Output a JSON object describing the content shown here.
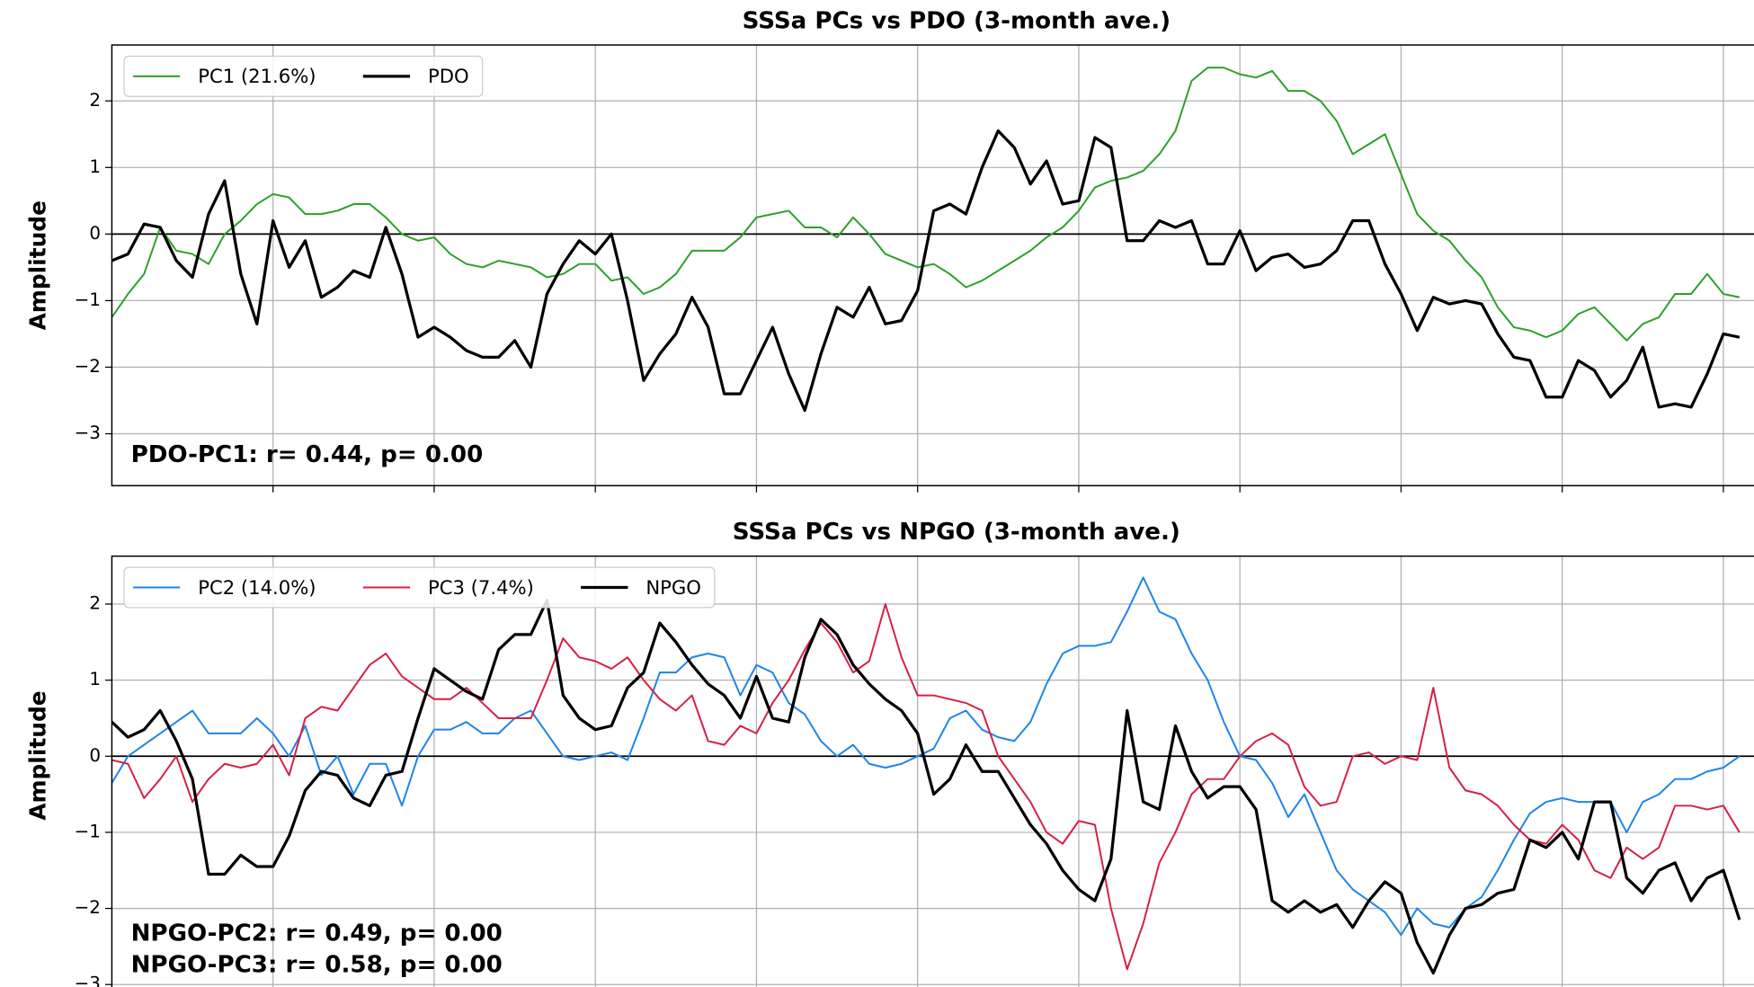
{
  "chart_data": [
    {
      "type": "line",
      "title": "SSSa PCs vs PDO (3-month ave.)",
      "ylabel": "Amplitude",
      "x": [
        0,
        1,
        2,
        3,
        4,
        5,
        6,
        7,
        8,
        9,
        10,
        11,
        12,
        13,
        14,
        15,
        16,
        17,
        18,
        19,
        20,
        21,
        22,
        23,
        24,
        25,
        26,
        27,
        28,
        29,
        30,
        31,
        32,
        33,
        34,
        35,
        36,
        37,
        38,
        39,
        40,
        41,
        42,
        43,
        44,
        45,
        46,
        47,
        48,
        49,
        50,
        51,
        52,
        53,
        54,
        55,
        56,
        57,
        58,
        59,
        60,
        61,
        62,
        63,
        64,
        65,
        66,
        67,
        68,
        69,
        70,
        71,
        72,
        73,
        74,
        75,
        76,
        77,
        78,
        79,
        80,
        81,
        82,
        83,
        84,
        85,
        86,
        87,
        88,
        89,
        90,
        91,
        92,
        93,
        94,
        95,
        96,
        97,
        98,
        99,
        100,
        101
      ],
      "series": [
        {
          "name": "PC1 (21.6%)",
          "color": "#2ca02c",
          "width": 1.6,
          "values": [
            -1.25,
            -0.9,
            -0.6,
            0.1,
            -0.25,
            -0.3,
            -0.45,
            0.0,
            0.2,
            0.45,
            0.6,
            0.55,
            0.3,
            0.3,
            0.35,
            0.45,
            0.45,
            0.25,
            0.0,
            -0.1,
            -0.05,
            -0.3,
            -0.45,
            -0.5,
            -0.4,
            -0.45,
            -0.5,
            -0.65,
            -0.6,
            -0.45,
            -0.45,
            -0.7,
            -0.65,
            -0.9,
            -0.8,
            -0.6,
            -0.25,
            -0.25,
            -0.25,
            -0.05,
            0.25,
            0.3,
            0.35,
            0.1,
            0.1,
            -0.05,
            0.25,
            0.0,
            -0.3,
            -0.4,
            -0.5,
            -0.45,
            -0.6,
            -0.8,
            -0.7,
            -0.55,
            -0.4,
            -0.25,
            -0.05,
            0.1,
            0.35,
            0.7,
            0.8,
            0.85,
            0.95,
            1.2,
            1.55,
            2.3,
            2.5,
            2.5,
            2.4,
            2.35,
            2.45,
            2.15,
            2.15,
            2.0,
            1.7,
            1.2,
            1.35,
            1.5,
            0.9,
            0.3,
            0.05,
            -0.1,
            -0.4,
            -0.65,
            -1.1,
            -1.4,
            -1.45,
            -1.55,
            -1.45,
            -1.2,
            -1.1,
            -1.35,
            -1.6,
            -1.35,
            -1.25,
            -0.9,
            -0.9,
            -0.6,
            -0.9,
            -0.95
          ]
        },
        {
          "name": "PDO",
          "color": "#000000",
          "width": 2.6,
          "values": [
            -0.4,
            -0.3,
            0.15,
            0.1,
            -0.4,
            -0.65,
            0.3,
            0.8,
            -0.6,
            -1.35,
            0.2,
            -0.5,
            -0.1,
            -0.95,
            -0.8,
            -0.55,
            -0.65,
            0.1,
            -0.6,
            -1.55,
            -1.4,
            -1.55,
            -1.75,
            -1.85,
            -1.85,
            -1.6,
            -2.0,
            -0.9,
            -0.45,
            -0.1,
            -0.3,
            0.0,
            -1.0,
            -2.2,
            -1.8,
            -1.5,
            -0.95,
            -1.4,
            -2.4,
            -2.4,
            -1.9,
            -1.4,
            -2.1,
            -2.65,
            -1.8,
            -1.1,
            -1.25,
            -0.8,
            -1.35,
            -1.3,
            -0.85,
            0.35,
            0.45,
            0.3,
            1.0,
            1.55,
            1.3,
            0.75,
            1.1,
            0.45,
            0.5,
            1.45,
            1.3,
            -0.1,
            -0.1,
            0.2,
            0.1,
            0.2,
            -0.45,
            -0.45,
            0.05,
            -0.55,
            -0.35,
            -0.3,
            -0.5,
            -0.45,
            -0.25,
            0.2,
            0.2,
            -0.45,
            -0.9,
            -1.45,
            -0.95,
            -1.05,
            -1.0,
            -1.05,
            -1.5,
            -1.85,
            -1.9,
            -2.45,
            -2.45,
            -1.9,
            -2.05,
            -2.45,
            -2.2,
            -1.7,
            -2.6,
            -2.55,
            -2.6,
            -2.1,
            -1.5,
            -1.55
          ]
        }
      ],
      "xlim": [
        0,
        101.9
      ],
      "ylim": [
        -3.78,
        2.84
      ],
      "xticks": [
        10,
        20,
        30,
        40,
        50,
        60,
        70,
        80,
        90,
        100
      ],
      "yticks": [
        {
          "value": -3,
          "label": "−3"
        },
        {
          "value": -2,
          "label": "−2"
        },
        {
          "value": -1,
          "label": "−1"
        },
        0,
        1,
        2
      ],
      "hline": 0,
      "grid": true,
      "legend": "upper left",
      "annotations": [
        "PDO-PC1: r= 0.44, p= 0.00"
      ]
    },
    {
      "type": "line",
      "title": "SSSa PCs vs NPGO (3-month ave.)",
      "ylabel": "Amplitude",
      "x": [
        0,
        1,
        2,
        3,
        4,
        5,
        6,
        7,
        8,
        9,
        10,
        11,
        12,
        13,
        14,
        15,
        16,
        17,
        18,
        19,
        20,
        21,
        22,
        23,
        24,
        25,
        26,
        27,
        28,
        29,
        30,
        31,
        32,
        33,
        34,
        35,
        36,
        37,
        38,
        39,
        40,
        41,
        42,
        43,
        44,
        45,
        46,
        47,
        48,
        49,
        50,
        51,
        52,
        53,
        54,
        55,
        56,
        57,
        58,
        59,
        60,
        61,
        62,
        63,
        64,
        65,
        66,
        67,
        68,
        69,
        70,
        71,
        72,
        73,
        74,
        75,
        76,
        77,
        78,
        79,
        80,
        81,
        82,
        83,
        84,
        85,
        86,
        87,
        88,
        89,
        90,
        91,
        92,
        93,
        94,
        95,
        96,
        97,
        98,
        99,
        100,
        101
      ],
      "series": [
        {
          "name": "PC2 (14.0%)",
          "color": "#1f85e8",
          "width": 1.6,
          "values": [
            -0.35,
            0.0,
            0.15,
            0.3,
            0.45,
            0.6,
            0.3,
            0.3,
            0.3,
            0.5,
            0.3,
            0.0,
            0.4,
            -0.25,
            0.0,
            -0.5,
            -0.1,
            -0.1,
            -0.65,
            0.0,
            0.35,
            0.35,
            0.45,
            0.3,
            0.3,
            0.5,
            0.6,
            0.3,
            0.0,
            -0.05,
            0.0,
            0.05,
            -0.05,
            0.5,
            1.1,
            1.1,
            1.3,
            1.35,
            1.3,
            0.8,
            1.2,
            1.1,
            0.7,
            0.55,
            0.2,
            0.0,
            0.15,
            -0.1,
            -0.15,
            -0.1,
            0.0,
            0.1,
            0.5,
            0.6,
            0.35,
            0.25,
            0.2,
            0.45,
            0.95,
            1.35,
            1.45,
            1.45,
            1.5,
            1.9,
            2.35,
            1.9,
            1.8,
            1.35,
            1.0,
            0.45,
            0.0,
            -0.05,
            -0.35,
            -0.8,
            -0.5,
            -1.0,
            -1.5,
            -1.75,
            -1.9,
            -2.05,
            -2.35,
            -2.0,
            -2.2,
            -2.25,
            -2.0,
            -1.85,
            -1.5,
            -1.1,
            -0.75,
            -0.6,
            -0.55,
            -0.6,
            -0.6,
            -0.6,
            -1.0,
            -0.6,
            -0.5,
            -0.3,
            -0.3,
            -0.2,
            -0.15,
            0.0
          ]
        },
        {
          "name": "PC3 (7.4%)",
          "color": "#d62045",
          "width": 1.6,
          "values": [
            -0.05,
            -0.1,
            -0.55,
            -0.3,
            0.0,
            -0.6,
            -0.3,
            -0.1,
            -0.15,
            -0.1,
            0.15,
            -0.25,
            0.5,
            0.65,
            0.6,
            0.9,
            1.2,
            1.35,
            1.05,
            0.9,
            0.75,
            0.75,
            0.9,
            0.7,
            0.5,
            0.5,
            0.5,
            1.0,
            1.55,
            1.3,
            1.25,
            1.15,
            1.3,
            1.0,
            0.75,
            0.6,
            0.8,
            0.2,
            0.15,
            0.4,
            0.3,
            0.7,
            1.0,
            1.4,
            1.75,
            1.5,
            1.1,
            1.25,
            2.0,
            1.3,
            0.8,
            0.8,
            0.75,
            0.7,
            0.6,
            0.0,
            -0.3,
            -0.6,
            -1.0,
            -1.15,
            -0.85,
            -0.9,
            -2.0,
            -2.8,
            -2.2,
            -1.4,
            -1.0,
            -0.5,
            -0.3,
            -0.3,
            0.0,
            0.2,
            0.3,
            0.15,
            -0.4,
            -0.65,
            -0.6,
            0.0,
            0.05,
            -0.1,
            0.0,
            -0.05,
            0.9,
            -0.15,
            -0.45,
            -0.5,
            -0.65,
            -0.9,
            -1.1,
            -1.15,
            -0.9,
            -1.1,
            -1.5,
            -1.6,
            -1.2,
            -1.35,
            -1.2,
            -0.65,
            -0.65,
            -0.7,
            -0.65,
            -1.0
          ]
        },
        {
          "name": "NPGO",
          "color": "#000000",
          "width": 2.6,
          "values": [
            0.45,
            0.25,
            0.35,
            0.6,
            0.2,
            -0.3,
            -1.55,
            -1.55,
            -1.3,
            -1.45,
            -1.45,
            -1.05,
            -0.45,
            -0.2,
            -0.25,
            -0.55,
            -0.65,
            -0.25,
            -0.2,
            0.5,
            1.15,
            1.0,
            0.85,
            0.75,
            1.4,
            1.6,
            1.6,
            2.05,
            0.8,
            0.5,
            0.35,
            0.4,
            0.9,
            1.1,
            1.75,
            1.5,
            1.2,
            0.95,
            0.8,
            0.5,
            1.05,
            0.5,
            0.45,
            1.3,
            1.8,
            1.6,
            1.2,
            0.95,
            0.75,
            0.6,
            0.3,
            -0.5,
            -0.3,
            0.15,
            -0.2,
            -0.2,
            -0.55,
            -0.9,
            -1.15,
            -1.5,
            -1.75,
            -1.9,
            -1.35,
            0.6,
            -0.6,
            -0.7,
            0.4,
            -0.2,
            -0.55,
            -0.4,
            -0.4,
            -0.7,
            -1.9,
            -2.05,
            -1.9,
            -2.05,
            -1.95,
            -2.25,
            -1.9,
            -1.65,
            -1.8,
            -2.45,
            -2.85,
            -2.35,
            -2.0,
            -1.95,
            -1.8,
            -1.75,
            -1.1,
            -1.2,
            -1.0,
            -1.35,
            -0.6,
            -0.6,
            -1.6,
            -1.8,
            -1.5,
            -1.4,
            -1.9,
            -1.6,
            -1.5,
            -2.15
          ]
        }
      ],
      "xlim": [
        0,
        101.9
      ],
      "ylim": [
        -3.2,
        2.63
      ],
      "xticks": [
        10,
        20,
        30,
        40,
        50,
        60,
        70,
        80,
        90,
        100
      ],
      "yticks": [
        {
          "value": -3,
          "label": "−3"
        },
        {
          "value": -2,
          "label": "−2"
        },
        {
          "value": -1,
          "label": "−1"
        },
        0,
        1,
        2
      ],
      "hline": 0,
      "grid": true,
      "legend": "upper left",
      "annotations": [
        "NPGO-PC2: r= 0.49, p= 0.00",
        "NPGO-PC3: r= 0.58, p= 0.00"
      ]
    }
  ]
}
